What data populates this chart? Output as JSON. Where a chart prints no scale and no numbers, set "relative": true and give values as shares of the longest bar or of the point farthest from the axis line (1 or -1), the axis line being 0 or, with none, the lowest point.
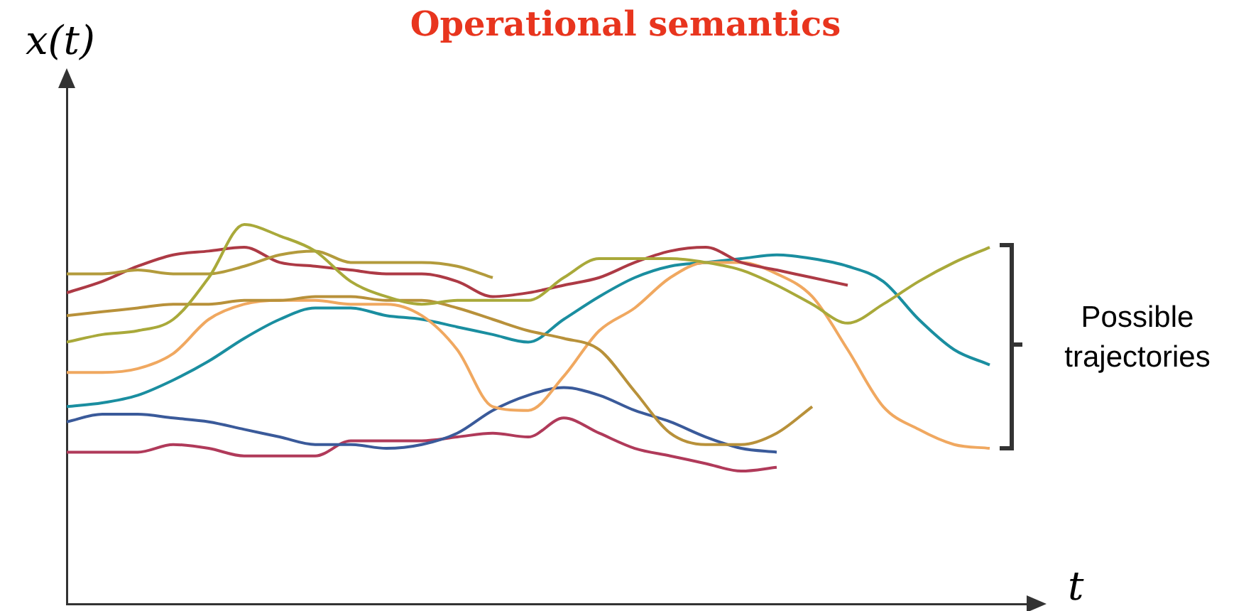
{
  "chart_data": {
    "type": "line",
    "title": "Operational semantics",
    "ylabel": "x(t)",
    "xlabel": "t",
    "annotations": [
      "Possible trajectories"
    ],
    "relative": true,
    "legend": false,
    "grid": false,
    "marker": "none",
    "line_style": "solid",
    "categories": [
      null,
      null,
      null,
      null,
      null,
      null,
      null,
      null,
      null,
      null,
      null,
      null,
      null,
      null,
      null,
      null,
      null,
      null,
      null,
      null,
      null,
      null,
      null,
      null,
      null,
      null,
      null
    ],
    "series": [
      {
        "color": "#a9a93a",
        "values": [
          0.69,
          0.71,
          0.72,
          0.75,
          0.86,
          1,
          0.97,
          0.93,
          0.85,
          0.81,
          0.79,
          0.8,
          0.8,
          0.8,
          0.86,
          0.91,
          0.91,
          0.91,
          0.9,
          0.88,
          0.84,
          0.79,
          0.74,
          0.79,
          0.85,
          0.9,
          0.94
        ]
      },
      {
        "color": "#b39b3c",
        "values": [
          0.87,
          0.87,
          0.88,
          0.87,
          0.87,
          0.89,
          0.92,
          0.93,
          0.9,
          0.9,
          0.9,
          0.89,
          0.86,
          null,
          null,
          null,
          null,
          null,
          null,
          null,
          null,
          null,
          null,
          null,
          null,
          null,
          null
        ]
      },
      {
        "color": "#ad3a45",
        "values": [
          0.82,
          0.85,
          0.89,
          0.92,
          0.93,
          0.94,
          0.9,
          0.89,
          0.88,
          0.87,
          0.87,
          0.85,
          0.81,
          0.82,
          0.84,
          0.86,
          0.9,
          0.93,
          0.94,
          0.9,
          0.88,
          0.86,
          0.84,
          null,
          null,
          null,
          null
        ]
      },
      {
        "color": "#b8913a",
        "values": [
          0.76,
          0.77,
          0.78,
          0.79,
          0.79,
          0.8,
          0.8,
          0.81,
          0.81,
          0.8,
          0.8,
          0.78,
          0.75,
          0.72,
          0.7,
          0.67,
          0.56,
          0.45,
          0.42,
          0.42,
          0.45,
          0.52,
          null,
          null,
          null,
          null,
          null
        ]
      },
      {
        "color": "#f0a860",
        "values": [
          0.61,
          0.61,
          0.62,
          0.66,
          0.75,
          0.79,
          0.8,
          0.8,
          0.79,
          0.79,
          0.76,
          0.67,
          0.52,
          0.51,
          0.6,
          0.72,
          0.78,
          0.86,
          0.9,
          0.9,
          0.87,
          0.81,
          0.67,
          0.52,
          0.46,
          0.42,
          0.41
        ]
      },
      {
        "color": "#1a8ea0",
        "values": [
          0.52,
          0.53,
          0.55,
          0.59,
          0.64,
          0.7,
          0.75,
          0.78,
          0.78,
          0.76,
          0.75,
          0.73,
          0.71,
          0.69,
          0.75,
          0.81,
          0.86,
          0.89,
          0.9,
          0.91,
          0.92,
          0.91,
          0.89,
          0.85,
          0.75,
          0.67,
          0.63
        ]
      },
      {
        "color": "#3a5a9a",
        "values": [
          0.48,
          0.5,
          0.5,
          0.49,
          0.48,
          0.46,
          0.44,
          0.42,
          0.42,
          0.41,
          0.42,
          0.45,
          0.51,
          0.55,
          0.57,
          0.55,
          0.51,
          0.48,
          0.44,
          0.41,
          0.4,
          null,
          null,
          null,
          null,
          null,
          null
        ]
      },
      {
        "color": "#b03a5a",
        "values": [
          0.4,
          0.4,
          0.4,
          0.42,
          0.41,
          0.39,
          0.39,
          0.39,
          0.43,
          0.43,
          0.43,
          0.44,
          0.45,
          0.44,
          0.49,
          0.45,
          0.41,
          0.39,
          0.37,
          0.35,
          0.36,
          null,
          null,
          null,
          null,
          null,
          null
        ]
      }
    ]
  }
}
